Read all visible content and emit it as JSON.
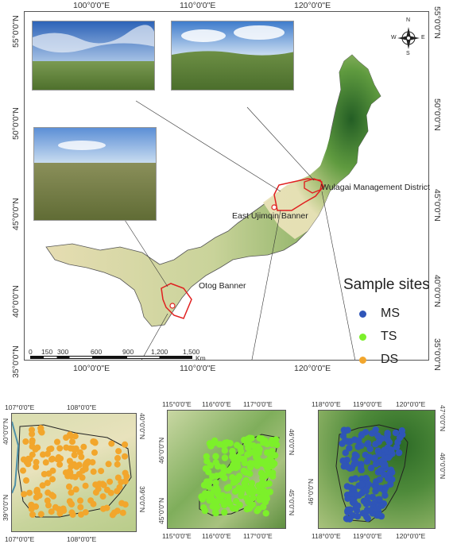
{
  "main_map": {
    "top_lon_labels": [
      "100°0'0\"E",
      "110°0'0\"E",
      "120°0'0\"E"
    ],
    "bottom_lon_labels": [
      "100°0'0\"E",
      "110°0'0\"E",
      "120°0'0\"E"
    ],
    "lat_labels": [
      "55°0'0\"N",
      "50°0'0\"N",
      "45°0'0\"N",
      "40°0'0\"N",
      "35°0'0\"N"
    ],
    "place_labels": {
      "wulagai": "Wulagai Management District",
      "east_ujimqin": "East Ujimqin Banner",
      "otog": "Otog Banner"
    },
    "compass": {
      "n": "N",
      "s": "S",
      "e": "E",
      "w": "W"
    },
    "scale_bar": {
      "ticks": [
        "0",
        "150",
        "300",
        "600",
        "900",
        "1,200",
        "1,500"
      ],
      "unit": "Km"
    }
  },
  "legend": {
    "title": "Sample sites",
    "items": [
      {
        "label": "MS",
        "color": "#2f55b8"
      },
      {
        "label": "TS",
        "color": "#7cf02a"
      },
      {
        "label": "DS",
        "color": "#f2a62c"
      }
    ]
  },
  "inset_ds": {
    "top_labels": [
      "107°0'0\"E",
      "108°0'0\"E"
    ],
    "bottom_labels": [
      "107°0'0\"E",
      "108°0'0\"E"
    ],
    "left_labels": [
      "40°0'0\"N",
      "39°0'0\"N"
    ],
    "right_labels": [
      "40°0'0\"N",
      "39°0'0\"N"
    ],
    "dot_color": "#f2a62c"
  },
  "inset_ts": {
    "top_labels": [
      "115°0'0\"E",
      "116°0'0\"E",
      "117°0'0\"E"
    ],
    "bottom_labels": [
      "115°0'0\"E",
      "116°0'0\"E",
      "117°0'0\"E"
    ],
    "left_labels": [
      "46°0'0\"N",
      "45°0'0\"N"
    ],
    "right_labels": [
      "46°0'0\"N",
      "45°0'0\"N"
    ],
    "dot_color": "#7cf02a"
  },
  "inset_ms": {
    "top_labels": [
      "118°0'0\"E",
      "119°0'0\"E",
      "120°0'0\"E"
    ],
    "bottom_labels": [
      "118°0'0\"E",
      "119°0'0\"E",
      "120°0'0\"E"
    ],
    "left_labels": [
      "46°0'0\"N"
    ],
    "right_labels": [
      "47°0'0\"N",
      "46°0'0\"N"
    ],
    "dot_color": "#2f55b8"
  },
  "colors": {
    "boundary_red": "#e02020",
    "terrain_dark": "#2f6b2a",
    "terrain_light": "#e9e2b8"
  }
}
